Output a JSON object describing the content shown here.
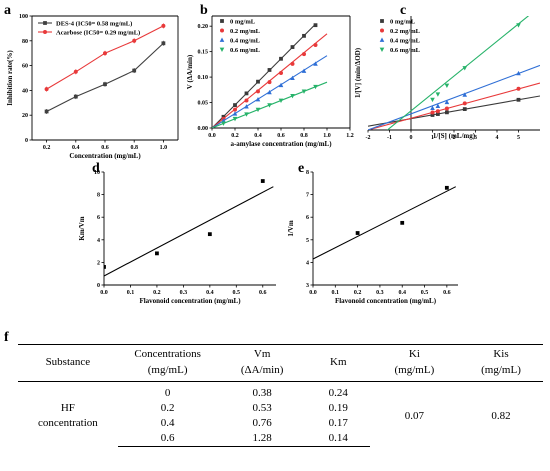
{
  "panels": {
    "a": "a",
    "b": "b",
    "c": "c",
    "d": "d",
    "e": "e",
    "f": "f"
  },
  "chart_data": [
    {
      "id": "a",
      "type": "line",
      "xlabel": "Concentration (mg/mL)",
      "ylabel": "Inhibition rate(%)",
      "xlim": [
        0.1,
        1.1
      ],
      "ylim": [
        0,
        100
      ],
      "xticks": [
        "0.2",
        "0.4",
        "0.6",
        "0.8",
        "1.0"
      ],
      "yticks": [
        "0",
        "20",
        "40",
        "60",
        "80",
        "100"
      ],
      "legend_position": "top-left",
      "series": [
        {
          "name": "DES-4 (IC50= 0.58 mg/mL)",
          "color": "#404040",
          "marker": "square",
          "x": [
            0.2,
            0.4,
            0.6,
            0.8,
            1.0
          ],
          "y": [
            23,
            35,
            45,
            56,
            78
          ]
        },
        {
          "name": "Acarbose (IC50= 0.29 mg/mL)",
          "color": "#e8393a",
          "marker": "circle",
          "x": [
            0.2,
            0.4,
            0.6,
            0.8,
            1.0
          ],
          "y": [
            41,
            55,
            70,
            80,
            92
          ]
        }
      ]
    },
    {
      "id": "b",
      "type": "scatter",
      "xlabel": "a-amylase concentration (mg/mL)",
      "ylabel": "V (ΔA/min)",
      "xlim": [
        0,
        1.2
      ],
      "ylim": [
        0,
        0.22
      ],
      "xticks": [
        "0.0",
        "0.2",
        "0.4",
        "0.6",
        "0.8",
        "1.0",
        "1.2"
      ],
      "yticks": [
        "0.00",
        "0.05",
        "0.10",
        "0.15",
        "0.20"
      ],
      "legend_position": "top-left",
      "series": [
        {
          "name": "0   mg/mL",
          "color": "#3a3a3a",
          "marker": "square",
          "x": [
            0.1,
            0.2,
            0.3,
            0.4,
            0.5,
            0.6,
            0.7,
            0.8,
            0.9
          ],
          "y": [
            0.022,
            0.045,
            0.068,
            0.091,
            0.114,
            0.136,
            0.159,
            0.181,
            0.202
          ],
          "fit_x": [
            0,
            0.9
          ],
          "fit_y": [
            0,
            0.204
          ]
        },
        {
          "name": "0.2 mg/mL",
          "color": "#e8393a",
          "marker": "circle",
          "x": [
            0.1,
            0.2,
            0.3,
            0.4,
            0.5,
            0.6,
            0.7,
            0.8,
            0.9
          ],
          "y": [
            0.018,
            0.036,
            0.054,
            0.072,
            0.09,
            0.108,
            0.126,
            0.145,
            0.163
          ],
          "fit_x": [
            0,
            1.0
          ],
          "fit_y": [
            0,
            0.185
          ]
        },
        {
          "name": "0.4 mg/mL",
          "color": "#2f6fd6",
          "marker": "triangle",
          "x": [
            0.1,
            0.2,
            0.3,
            0.4,
            0.5,
            0.6,
            0.7,
            0.8,
            0.9
          ],
          "y": [
            0.014,
            0.028,
            0.042,
            0.056,
            0.07,
            0.084,
            0.098,
            0.112,
            0.126
          ],
          "fit_x": [
            0,
            1.0
          ],
          "fit_y": [
            0,
            0.142
          ]
        },
        {
          "name": "0.6 mg/mL",
          "color": "#27b36a",
          "marker": "triangle-down",
          "x": [
            0.1,
            0.2,
            0.3,
            0.4,
            0.5,
            0.6,
            0.7,
            0.8,
            0.9
          ],
          "y": [
            0.009,
            0.018,
            0.027,
            0.036,
            0.045,
            0.054,
            0.063,
            0.072,
            0.081
          ],
          "fit_x": [
            0,
            1.0
          ],
          "fit_y": [
            0,
            0.09
          ]
        }
      ]
    },
    {
      "id": "c",
      "type": "scatter",
      "xlabel": "1/[S] (mL/mg)",
      "ylabel": "1/[V] (min/ΔOD)",
      "xlim": [
        -2,
        6
      ],
      "ylim": [
        0,
        60
      ],
      "xticks": [
        "-2",
        "-1",
        "0",
        "1",
        "2",
        "3",
        "4",
        "5"
      ],
      "yticks": [],
      "legend_position": "top-left",
      "series": [
        {
          "name": "0   mg/mL",
          "color": "#3a3a3a",
          "marker": "square",
          "x": [
            1,
            1.25,
            1.67,
            2.5,
            5
          ],
          "y": [
            7.9,
            8.4,
            9.3,
            11.0,
            15.9
          ],
          "fit_x": [
            -2,
            6
          ],
          "fit_y": [
            2.0,
            17.9
          ]
        },
        {
          "name": "0.2 mg/mL",
          "color": "#e8393a",
          "marker": "circle",
          "x": [
            1,
            1.25,
            1.67,
            2.5,
            5
          ],
          "y": [
            9.2,
            9.9,
            11.3,
            14.0,
            21.7
          ],
          "fit_x": [
            -2,
            6
          ],
          "fit_y": [
            0.0,
            24.7
          ]
        },
        {
          "name": "0.4 mg/mL",
          "color": "#2f6fd6",
          "marker": "triangle",
          "x": [
            1,
            1.25,
            1.67,
            2.5,
            5
          ],
          "y": [
            11.5,
            12.6,
            14.6,
            18.5,
            29.8
          ],
          "fit_x": [
            -2,
            6
          ],
          "fit_y": [
            0.0,
            34.0
          ]
        },
        {
          "name": "0.6 mg/mL",
          "color": "#27b36a",
          "marker": "triangle-down",
          "x": [
            1,
            1.25,
            1.67,
            2.5,
            5
          ],
          "y": [
            16.0,
            18.8,
            23.4,
            32.6,
            55.2
          ],
          "fit_x": [
            -1.1,
            6
          ],
          "fit_y": [
            0.0,
            65.0
          ]
        }
      ]
    },
    {
      "id": "d",
      "type": "scatter",
      "xlabel": "Flavonoid concentration (mg/mL)",
      "ylabel": "Km/Vm",
      "xlim": [
        0,
        0.65
      ],
      "ylim": [
        0,
        10
      ],
      "xticks": [
        "0.0",
        "0.1",
        "0.2",
        "0.3",
        "0.4",
        "0.5",
        "0.6"
      ],
      "yticks": [
        "0",
        "2",
        "4",
        "6",
        "8",
        "10"
      ],
      "series": [
        {
          "name": "",
          "color": "#000000",
          "marker": "square",
          "x": [
            0.0,
            0.2,
            0.4,
            0.6
          ],
          "y": [
            1.6,
            2.8,
            4.5,
            9.2
          ],
          "fit_x": [
            0,
            0.64
          ],
          "fit_y": [
            0.8,
            8.7
          ]
        }
      ]
    },
    {
      "id": "e",
      "type": "scatter",
      "xlabel": "Flavonoid concentration (mg/mL)",
      "ylabel": "1/Vm",
      "xlim": [
        0,
        0.65
      ],
      "ylim": [
        3,
        8
      ],
      "xticks": [
        "0.0",
        "0.1",
        "0.2",
        "0.3",
        "0.4",
        "0.5",
        "0.6"
      ],
      "yticks": [
        "3",
        "4",
        "5",
        "6",
        "7",
        "8"
      ],
      "series": [
        {
          "name": "",
          "color": "#000000",
          "marker": "square",
          "x": [
            0.2,
            0.4,
            0.6
          ],
          "y": [
            5.3,
            5.75,
            7.3
          ],
          "fit_x": [
            0,
            0.64
          ],
          "fit_y": [
            4.15,
            7.35
          ]
        }
      ]
    }
  ],
  "table": {
    "headers": [
      [
        "Substance"
      ],
      [
        "Concentrations",
        "(mg/mL)"
      ],
      [
        "Vm",
        "(ΔA/min)"
      ],
      [
        "Km"
      ],
      [
        "Ki",
        "(mg/mL)"
      ],
      [
        "Kis",
        "(mg/mL)"
      ]
    ],
    "substance": [
      "HF",
      "concentration"
    ],
    "rows": [
      {
        "conc": "0",
        "vm": "0.38",
        "km": "0.24"
      },
      {
        "conc": "0.2",
        "vm": "0.53",
        "km": "0.19"
      },
      {
        "conc": "0.4",
        "vm": "0.76",
        "km": "0.17"
      },
      {
        "conc": "0.6",
        "vm": "1.28",
        "km": "0.14"
      }
    ],
    "ki": "0.07",
    "kis": "0.82"
  }
}
